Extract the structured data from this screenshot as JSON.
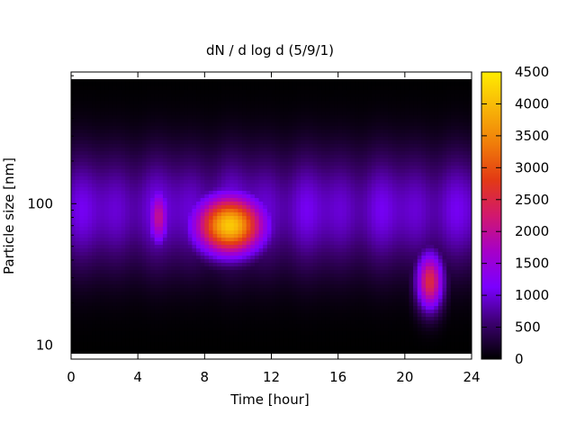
{
  "chart_data": {
    "type": "heatmap",
    "title": "dN / d log d (5/9/1)",
    "xlabel": "Time [hour]",
    "ylabel": "Particle size [nm]",
    "xlim": [
      0,
      24
    ],
    "x_ticks": [
      0,
      4,
      8,
      12,
      16,
      20,
      24
    ],
    "y_scale": "log",
    "ylim": [
      8,
      850
    ],
    "y_ticks": [
      10,
      100
    ],
    "colorbar": {
      "range": [
        0,
        4500
      ],
      "ticks": [
        0,
        500,
        1000,
        1500,
        2000,
        2500,
        3000,
        3500,
        4000,
        4500
      ],
      "colormap": [
        "#000000",
        "#3b006e",
        "#7a00ff",
        "#a600c8",
        "#d2186e",
        "#e33a14",
        "#f07d0a",
        "#f8b508",
        "#ffec00"
      ]
    },
    "features": [
      {
        "label": "background aerosol mode",
        "time_range": [
          0,
          24
        ],
        "peak_size_nm": 90,
        "dN": 1100
      },
      {
        "label": "morning event",
        "time_range": [
          4.5,
          6
        ],
        "peak_size_nm": 80,
        "dN": 1800
      },
      {
        "label": "main event",
        "time_range": [
          7,
          12
        ],
        "peak_size_nm": 70,
        "dN": 3900
      },
      {
        "label": "evening event",
        "time_range": [
          20.5,
          22.5
        ],
        "peak_size_nm": 28,
        "dN": 2500
      }
    ]
  }
}
